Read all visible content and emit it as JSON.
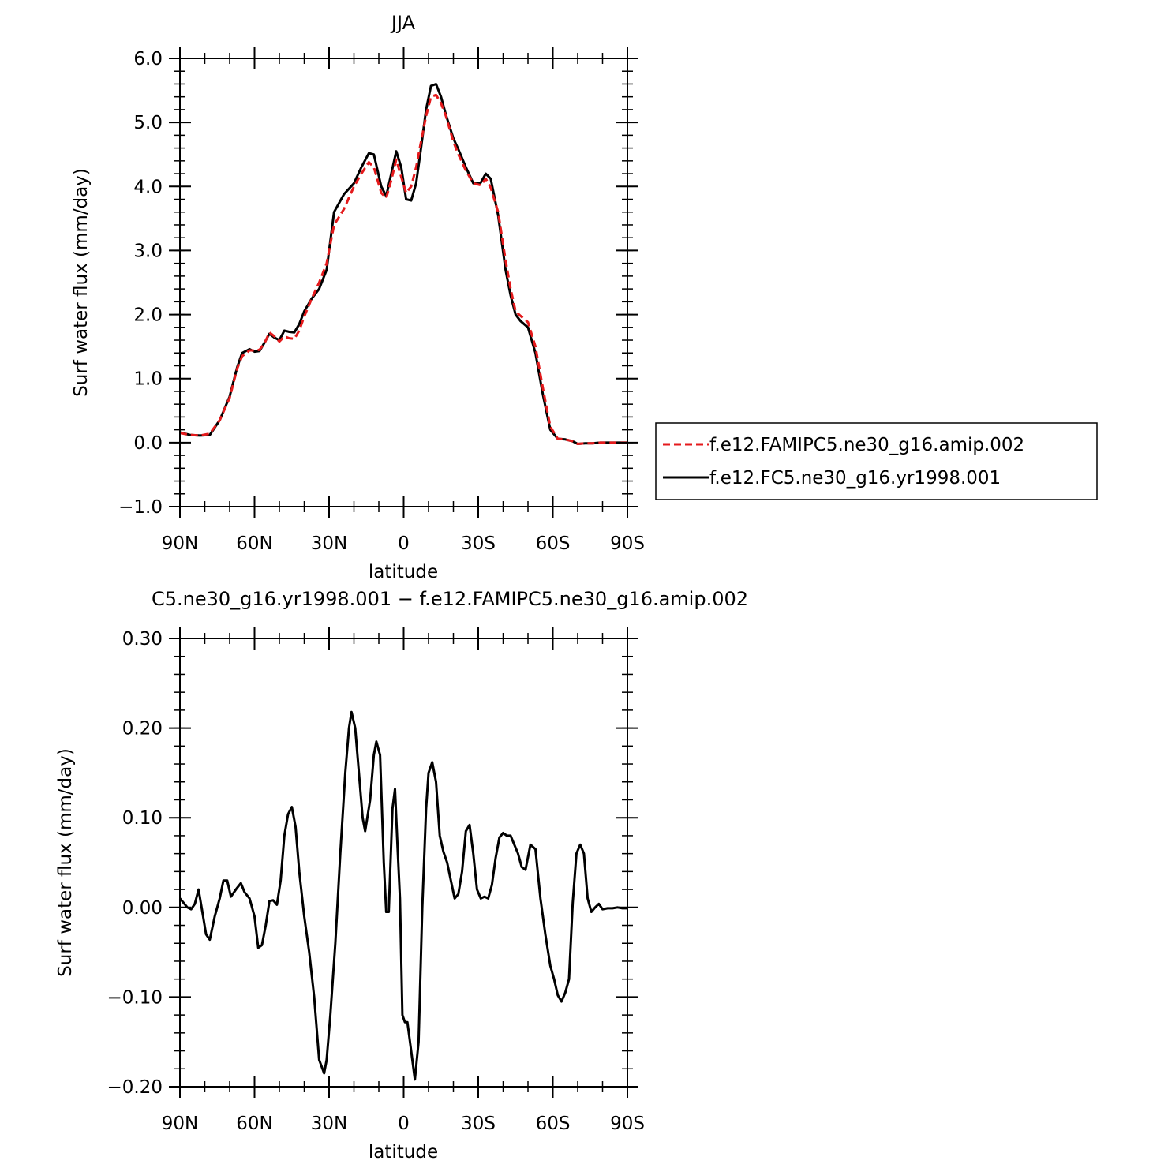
{
  "chart_data": [
    {
      "type": "line",
      "title": "JJA",
      "xlabel": "latitude",
      "ylabel": "Surf water flux (mm/day)",
      "xlim": [
        90,
        -90
      ],
      "ylim": [
        -1.0,
        6.0
      ],
      "xticks": [
        90,
        60,
        30,
        0,
        -30,
        -60,
        -90
      ],
      "xtick_labels": [
        "90N",
        "60N",
        "30N",
        "0",
        "30S",
        "60S",
        "90S"
      ],
      "yticks": [
        -1.0,
        0.0,
        1.0,
        2.0,
        3.0,
        4.0,
        5.0,
        6.0
      ],
      "ytick_labels": [
        "−1.0",
        "0.0",
        "1.0",
        "2.0",
        "3.0",
        "4.0",
        "5.0",
        "6.0"
      ],
      "grid": false,
      "legend_position": "right",
      "series": [
        {
          "name": "f.e12.FAMIPC5.ne30_g16.amip.002",
          "color": "#e41a1c",
          "dash": "dashed",
          "x": [
            90,
            86,
            82,
            78,
            74,
            70,
            67,
            65,
            62,
            60,
            58,
            56,
            54,
            52,
            50,
            48,
            46,
            44,
            42,
            40,
            37,
            34,
            31,
            28,
            24,
            20,
            17,
            14,
            12,
            9,
            7,
            5,
            3,
            1,
            -1,
            -3,
            -5,
            -7,
            -9,
            -11,
            -13,
            -15,
            -17,
            -20,
            -22,
            -25,
            -28,
            -31,
            -33,
            -35,
            -38,
            -41,
            -43,
            -45,
            -47,
            -50,
            -53,
            -56,
            -59,
            -62,
            -65,
            -68,
            -70,
            -73,
            -76,
            -79,
            -82,
            -85,
            -88,
            -90
          ],
          "y": [
            0.15,
            0.12,
            0.11,
            0.14,
            0.35,
            0.7,
            1.15,
            1.35,
            1.44,
            1.44,
            1.45,
            1.55,
            1.72,
            1.66,
            1.58,
            1.66,
            1.63,
            1.62,
            1.75,
            1.97,
            2.25,
            2.5,
            2.8,
            3.4,
            3.65,
            4.0,
            4.2,
            4.38,
            4.3,
            3.9,
            3.82,
            4.1,
            4.42,
            4.15,
            3.9,
            4.0,
            4.3,
            4.7,
            5.1,
            5.4,
            5.43,
            5.3,
            5.1,
            4.7,
            4.5,
            4.25,
            4.05,
            4.02,
            4.12,
            3.98,
            3.6,
            2.85,
            2.4,
            2.05,
            1.98,
            1.88,
            1.5,
            0.85,
            0.25,
            0.06,
            0.05,
            0.02,
            -0.02,
            -0.01,
            -0.01,
            0.0,
            0.0,
            0.0,
            0.0,
            0.0
          ]
        },
        {
          "name": "f.e12.FC5.ne30_g16.yr1998.001",
          "color": "#000000",
          "dash": "solid",
          "x": [
            90,
            86,
            82,
            78,
            74,
            70,
            67,
            65,
            62,
            60,
            58,
            56,
            54,
            52,
            50,
            48,
            46,
            44,
            42,
            40,
            37,
            34,
            31,
            28,
            24,
            20,
            17,
            14,
            12,
            9,
            7,
            5,
            3,
            1,
            -1,
            -3,
            -5,
            -7,
            -9,
            -11,
            -13,
            -15,
            -17,
            -20,
            -22,
            -25,
            -28,
            -31,
            -33,
            -35,
            -38,
            -41,
            -43,
            -45,
            -47,
            -50,
            -53,
            -56,
            -59,
            -62,
            -65,
            -68,
            -70,
            -73,
            -76,
            -79,
            -82,
            -85,
            -88,
            -90
          ],
          "y": [
            0.16,
            0.12,
            0.11,
            0.12,
            0.35,
            0.72,
            1.17,
            1.4,
            1.46,
            1.42,
            1.43,
            1.56,
            1.7,
            1.64,
            1.6,
            1.75,
            1.73,
            1.72,
            1.85,
            2.05,
            2.25,
            2.4,
            2.7,
            3.6,
            3.88,
            4.05,
            4.3,
            4.52,
            4.5,
            4.0,
            3.85,
            4.2,
            4.55,
            4.3,
            3.8,
            3.78,
            4.05,
            4.6,
            5.2,
            5.57,
            5.6,
            5.4,
            5.12,
            4.75,
            4.58,
            4.3,
            4.05,
            4.06,
            4.2,
            4.12,
            3.55,
            2.7,
            2.3,
            2.0,
            1.9,
            1.8,
            1.4,
            0.75,
            0.2,
            0.06,
            0.05,
            0.02,
            -0.02,
            -0.01,
            -0.01,
            0.0,
            0.0,
            0.0,
            0.0,
            0.0
          ]
        }
      ]
    },
    {
      "type": "line",
      "title": "C5.ne30_g16.yr1998.001 − f.e12.FAMIPC5.ne30_g16.amip.002",
      "xlabel": "latitude",
      "ylabel": "Surf water flux (mm/day)",
      "xlim": [
        90,
        -90
      ],
      "ylim": [
        -0.2,
        0.3
      ],
      "xticks": [
        90,
        60,
        30,
        0,
        -30,
        -60,
        -90
      ],
      "xtick_labels": [
        "90N",
        "60N",
        "30N",
        "0",
        "30S",
        "60S",
        "90S"
      ],
      "yticks": [
        -0.2,
        -0.1,
        0.0,
        0.1,
        0.2,
        0.3
      ],
      "ytick_labels": [
        "−0.20",
        "−0.10",
        "0.00",
        "0.10",
        "0.20",
        "0.30"
      ],
      "grid": false,
      "series": [
        {
          "color": "#000000",
          "dash": "solid",
          "x": [
            90,
            88.5,
            87,
            85.5,
            84,
            82.5,
            81,
            79.5,
            78,
            76,
            74,
            72.5,
            71,
            69.5,
            67.5,
            65.5,
            64,
            62,
            60,
            58.5,
            57,
            55.5,
            54,
            52.5,
            51,
            49.5,
            48,
            46.5,
            45,
            43.5,
            42,
            40,
            38,
            36,
            34,
            32,
            31,
            29.5,
            27.5,
            25.5,
            23.5,
            22,
            21,
            19.5,
            18,
            16.5,
            15.5,
            13.5,
            12,
            11,
            9.5,
            8,
            7,
            6,
            4.5,
            3.5,
            2.5,
            1.5,
            0.5,
            -0.5,
            -1.5,
            -3,
            -4.5,
            -6,
            -7.5,
            -9,
            -10,
            -11.5,
            -13,
            -14.5,
            -16,
            -17.5,
            -19,
            -20.5,
            -22,
            -23.5,
            -25,
            -26.5,
            -28,
            -29.5,
            -31,
            -32.5,
            -34,
            -35.5,
            -37,
            -38.5,
            -40,
            -41.5,
            -43,
            -44.5,
            -46,
            -47.5,
            -49,
            -51,
            -53,
            -55,
            -57,
            -59,
            -60.5,
            -62,
            -63.5,
            -65,
            -66.5,
            -68,
            -69.5,
            -71,
            -72.5,
            -74,
            -75.5,
            -77,
            -78.5,
            -80,
            -82,
            -84,
            -86,
            -88,
            -90
          ],
          "y": [
            0.01,
            0.005,
            0.0,
            -0.002,
            0.004,
            0.02,
            -0.005,
            -0.03,
            -0.036,
            -0.01,
            0.01,
            0.03,
            0.03,
            0.012,
            0.02,
            0.027,
            0.017,
            0.01,
            -0.01,
            -0.045,
            -0.042,
            -0.02,
            0.007,
            0.008,
            0.003,
            0.03,
            0.08,
            0.104,
            0.112,
            0.09,
            0.04,
            -0.01,
            -0.05,
            -0.1,
            -0.17,
            -0.185,
            -0.17,
            -0.12,
            -0.04,
            0.06,
            0.15,
            0.2,
            0.218,
            0.2,
            0.15,
            0.1,
            0.085,
            0.12,
            0.17,
            0.185,
            0.17,
            0.05,
            -0.005,
            -0.005,
            0.11,
            0.132,
            0.07,
            0.01,
            -0.12,
            -0.128,
            -0.128,
            -0.16,
            -0.192,
            -0.15,
            0.0,
            0.11,
            0.15,
            0.162,
            0.14,
            0.08,
            0.062,
            0.05,
            0.03,
            0.01,
            0.015,
            0.04,
            0.085,
            0.092,
            0.06,
            0.02,
            0.01,
            0.012,
            0.01,
            0.025,
            0.055,
            0.078,
            0.083,
            0.08,
            0.08,
            0.07,
            0.06,
            0.045,
            0.042,
            0.07,
            0.065,
            0.01,
            -0.03,
            -0.065,
            -0.08,
            -0.098,
            -0.105,
            -0.095,
            -0.08,
            0.005,
            0.06,
            0.07,
            0.06,
            0.01,
            -0.005,
            0.0,
            0.004,
            -0.002,
            -0.001,
            -0.001,
            0.0,
            -0.001,
            -0.001
          ]
        }
      ]
    }
  ]
}
